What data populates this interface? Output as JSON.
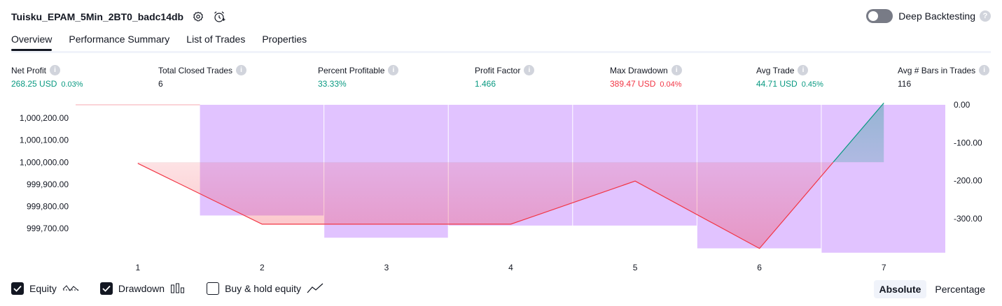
{
  "header": {
    "strategy_name": "Tuisku_EPAM_5Min_2BT0_badc14db",
    "settings_icon": "gear-icon",
    "alert_icon": "alarm-clock-plus-icon"
  },
  "deep_backtesting": {
    "label": "Deep Backtesting",
    "enabled": false,
    "help_icon": "question-icon"
  },
  "tabs": [
    {
      "label": "Overview",
      "active": true
    },
    {
      "label": "Performance Summary",
      "active": false
    },
    {
      "label": "List of Trades",
      "active": false
    },
    {
      "label": "Properties",
      "active": false
    }
  ],
  "metrics": {
    "net_profit": {
      "label": "Net Profit",
      "value": "268.25 USD",
      "pct": "0.03%"
    },
    "total_closed_trades": {
      "label": "Total Closed Trades",
      "value": "6"
    },
    "percent_profitable": {
      "label": "Percent Profitable",
      "value": "33.33%"
    },
    "profit_factor": {
      "label": "Profit Factor",
      "value": "1.466"
    },
    "max_drawdown": {
      "label": "Max Drawdown",
      "value": "389.47 USD",
      "pct": "0.04%"
    },
    "avg_trade": {
      "label": "Avg Trade",
      "value": "44.71 USD",
      "pct": "0.45%"
    },
    "avg_bars": {
      "label": "Avg # Bars in Trades",
      "value": "116"
    }
  },
  "colors": {
    "profit": "#089981",
    "loss": "#f23645",
    "drawdown_bar": "#e1c3ff",
    "equity_line": "#f23645"
  },
  "chart_data": {
    "type": "line",
    "x": [
      1,
      2,
      3,
      4,
      5,
      6,
      7
    ],
    "x_tick_labels": [
      "1",
      "2",
      "3",
      "4",
      "5",
      "6",
      "7"
    ],
    "series": [
      {
        "name": "Equity",
        "axis": "left",
        "values": [
          999995.0,
          999720.0,
          999720.0,
          999720.0,
          999915.0,
          999610.0,
          1000268.25
        ]
      },
      {
        "name": "Drawdown",
        "axis": "right",
        "type": "bar",
        "categories": [
          "1",
          "2",
          "3",
          "4",
          "5",
          "6",
          "7"
        ],
        "values": [
          0,
          -291.5,
          -350.0,
          -318.0,
          -318.0,
          -378.0,
          -389.5
        ]
      }
    ],
    "left_axis": {
      "ylim": [
        999590,
        1000260
      ],
      "ticks": [
        999700,
        999800,
        999900,
        1000000,
        1000100,
        1000200
      ],
      "tick_labels": [
        "999,700.00",
        "999,800.00",
        "999,900.00",
        "1,000,000.00",
        "1,000,100.00",
        "1,000,200.00"
      ]
    },
    "right_axis": {
      "ylim": [
        -390,
        0
      ],
      "ticks": [
        0,
        -100,
        -200,
        -300
      ],
      "tick_labels": [
        "0.00",
        "-100.00",
        "-200.00",
        "-300.00"
      ]
    },
    "baseline_equity": 1000000,
    "grid": false
  },
  "legend": [
    {
      "label": "Equity",
      "checked": true,
      "icon": "equity-line-icon"
    },
    {
      "label": "Drawdown",
      "checked": true,
      "icon": "bar-chart-icon"
    },
    {
      "label": "Buy & hold equity",
      "checked": false,
      "icon": "trend-line-icon"
    }
  ],
  "mode": {
    "absolute_label": "Absolute",
    "percentage_label": "Percentage",
    "selected": "absolute"
  }
}
